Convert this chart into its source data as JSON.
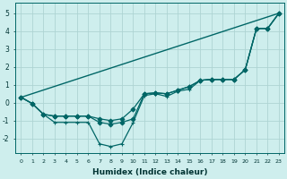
{
  "xlabel": "Humidex (Indice chaleur)",
  "background_color": "#ceeeed",
  "grid_color": "#aed4d3",
  "line_color": "#006666",
  "x_ticks": [
    0,
    1,
    2,
    3,
    4,
    5,
    6,
    7,
    8,
    9,
    10,
    11,
    12,
    13,
    14,
    15,
    16,
    17,
    18,
    19,
    20,
    21,
    22,
    23
  ],
  "y_ticks": [
    -2,
    -1,
    0,
    1,
    2,
    3,
    4,
    5
  ],
  "xlim": [
    -0.5,
    23.5
  ],
  "ylim": [
    -2.8,
    5.6
  ],
  "series": [
    {
      "x": [
        0,
        23
      ],
      "y": [
        0.3,
        5.0
      ],
      "marker": null,
      "markersize": 0,
      "linewidth": 1.0
    },
    {
      "x": [
        0,
        1,
        2,
        3,
        4,
        5,
        6,
        7,
        8,
        9,
        10,
        11,
        12,
        13,
        14,
        15,
        16,
        17,
        18,
        19,
        20,
        21,
        22,
        23
      ],
      "y": [
        0.3,
        -0.05,
        -0.65,
        -0.75,
        -0.75,
        -0.75,
        -0.75,
        -0.9,
        -1.0,
        -0.9,
        -0.35,
        0.5,
        0.55,
        0.5,
        0.7,
        0.9,
        1.25,
        1.3,
        1.3,
        1.3,
        1.85,
        4.15,
        4.15,
        5.0
      ],
      "marker": "D",
      "markersize": 2.5,
      "linewidth": 0.9
    },
    {
      "x": [
        0,
        1,
        2,
        3,
        4,
        5,
        6,
        7,
        8,
        9,
        10,
        11,
        12,
        13,
        14,
        15,
        16,
        17,
        18,
        19,
        20,
        21,
        22,
        23
      ],
      "y": [
        0.3,
        -0.05,
        -0.65,
        -0.75,
        -0.75,
        -0.75,
        -0.75,
        -1.1,
        -1.2,
        -1.1,
        -0.9,
        0.5,
        0.55,
        0.5,
        0.7,
        0.9,
        1.25,
        1.3,
        1.3,
        1.3,
        1.85,
        4.15,
        4.15,
        5.0
      ],
      "marker": "D",
      "markersize": 2.5,
      "linewidth": 0.9
    },
    {
      "x": [
        0,
        1,
        2,
        3,
        4,
        5,
        6,
        7,
        8,
        9,
        10,
        11,
        12,
        13,
        14,
        15,
        16,
        17,
        18,
        19,
        20,
        21,
        22,
        23
      ],
      "y": [
        0.3,
        -0.05,
        -0.65,
        -1.1,
        -1.1,
        -1.1,
        -1.1,
        -2.3,
        -2.45,
        -2.3,
        -1.1,
        0.4,
        0.5,
        0.35,
        0.65,
        0.75,
        1.25,
        1.3,
        1.3,
        1.3,
        1.85,
        4.15,
        4.15,
        5.0
      ],
      "marker": "+",
      "markersize": 3.5,
      "linewidth": 0.9
    }
  ]
}
